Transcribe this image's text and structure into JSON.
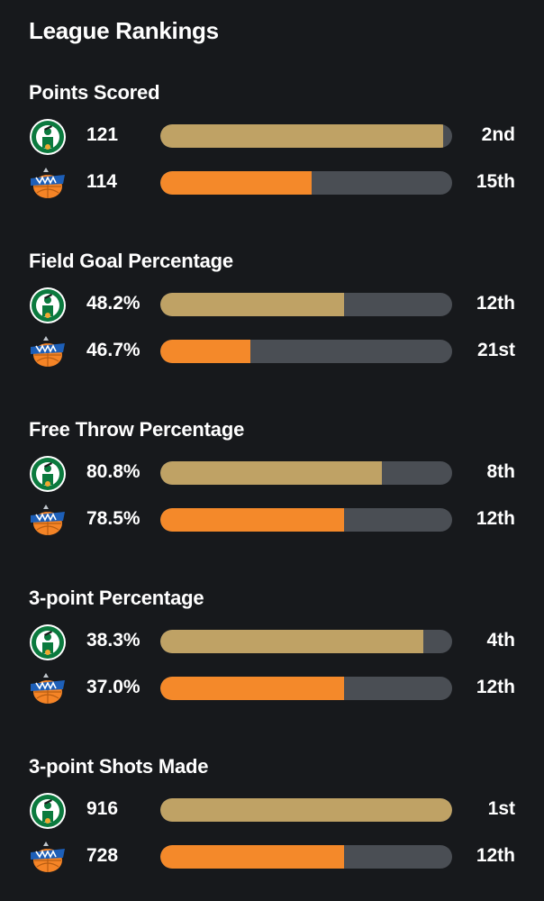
{
  "title": "League Rankings",
  "colors": {
    "background": "#17191c",
    "track": "#4a4e54",
    "team_a_bar": "#bfa265",
    "team_b_bar": "#f4892a"
  },
  "teams": [
    {
      "key": "team_a",
      "logo_icon": "celtics-logo-icon"
    },
    {
      "key": "team_b",
      "logo_icon": "knicks-logo-icon"
    }
  ],
  "sections": [
    {
      "title": "Points Scored",
      "rows": [
        {
          "value": "121",
          "rank": "2nd",
          "fill": 0.97
        },
        {
          "value": "114",
          "rank": "15th",
          "fill": 0.52
        }
      ]
    },
    {
      "title": "Field Goal Percentage",
      "rows": [
        {
          "value": "48.2%",
          "rank": "12th",
          "fill": 0.63
        },
        {
          "value": "46.7%",
          "rank": "21st",
          "fill": 0.31
        }
      ]
    },
    {
      "title": "Free Throw Percentage",
      "rows": [
        {
          "value": "80.8%",
          "rank": "8th",
          "fill": 0.76
        },
        {
          "value": "78.5%",
          "rank": "12th",
          "fill": 0.63
        }
      ]
    },
    {
      "title": "3-point Percentage",
      "rows": [
        {
          "value": "38.3%",
          "rank": "4th",
          "fill": 0.9
        },
        {
          "value": "37.0%",
          "rank": "12th",
          "fill": 0.63
        }
      ]
    },
    {
      "title": "3-point Shots Made",
      "rows": [
        {
          "value": "916",
          "rank": "1st",
          "fill": 1.0
        },
        {
          "value": "728",
          "rank": "12th",
          "fill": 0.63
        }
      ]
    }
  ]
}
